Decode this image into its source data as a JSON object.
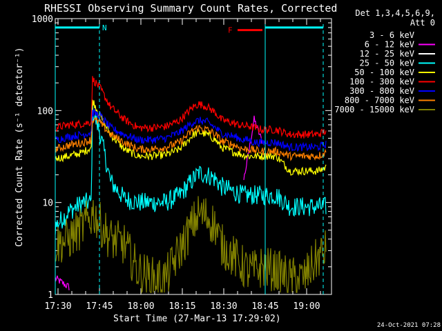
{
  "chart_data": {
    "type": "line",
    "title": "RHESSI Observing Summary Count Rates, Corrected",
    "xlabel": "Start Time (27-Mar-13 17:29:02)",
    "ylabel": "Corrected Count Rate (s⁻¹ detector⁻¹)",
    "y_scale": "log",
    "ylim": [
      1,
      1000
    ],
    "xlim_minutes": [
      0,
      100
    ],
    "x_tick_labels": [
      "17:30",
      "17:45",
      "18:00",
      "18:15",
      "18:30",
      "18:45",
      "19:00"
    ],
    "x_tick_minutes": [
      1,
      16,
      31,
      46,
      61,
      76,
      91
    ],
    "y_tick_labels": [
      "1",
      "10",
      "100",
      "1000"
    ],
    "y_tick_values": [
      1,
      10,
      100,
      1000
    ],
    "legend_header": [
      "Det 1,3,4,5,6,9,",
      "Att 0"
    ],
    "legend_position": "right",
    "timestamp": "24-Oct-2021 07:28",
    "x_sample_minutes": [
      0,
      5,
      10,
      13,
      13.5,
      16,
      20,
      25,
      30,
      35,
      40,
      45,
      50,
      52,
      55,
      58,
      60,
      65,
      68,
      70,
      72,
      75,
      80,
      85,
      90,
      95,
      98
    ],
    "series": [
      {
        "name": "3 - 6 keV",
        "color": "#000000",
        "values": [
          null,
          null,
          null,
          null,
          null,
          null,
          null,
          null,
          null,
          null,
          null,
          null,
          null,
          null,
          null,
          null,
          null,
          null,
          null,
          null,
          null,
          null,
          null,
          null,
          null,
          null,
          null
        ]
      },
      {
        "name": "6 - 12 keV",
        "color": "#ff00ff",
        "values": [
          1.5,
          1.2,
          null,
          null,
          null,
          null,
          null,
          null,
          null,
          null,
          null,
          null,
          null,
          null,
          null,
          null,
          null,
          null,
          16,
          35,
          80,
          45,
          null,
          null,
          null,
          null,
          null
        ]
      },
      {
        "name": "12 - 25 keV",
        "color": "#ffffff",
        "values": [
          null,
          null,
          null,
          null,
          null,
          null,
          null,
          null,
          null,
          null,
          null,
          null,
          null,
          null,
          null,
          null,
          null,
          null,
          null,
          null,
          null,
          null,
          null,
          null,
          null,
          null,
          null
        ]
      },
      {
        "name": "25 - 50 keV",
        "color": "#00ffff",
        "values": [
          5.5,
          8,
          10,
          10,
          100,
          60,
          17,
          11,
          10,
          10,
          10,
          12,
          18,
          21,
          20,
          18,
          15,
          13,
          12,
          12,
          12,
          12,
          12,
          9,
          9,
          9,
          9
        ]
      },
      {
        "name": "50 - 100 keV",
        "color": "#ffff00",
        "values": [
          30,
          32,
          35,
          40,
          130,
          90,
          55,
          38,
          32,
          32,
          33,
          38,
          55,
          58,
          55,
          48,
          40,
          35,
          33,
          32,
          32,
          32,
          32,
          22,
          22,
          22,
          24
        ]
      },
      {
        "name": "100 - 300 keV",
        "color": "#ff0000",
        "values": [
          65,
          70,
          72,
          75,
          220,
          180,
          110,
          80,
          65,
          65,
          67,
          78,
          110,
          118,
          110,
          95,
          80,
          72,
          68,
          68,
          65,
          62,
          62,
          55,
          55,
          55,
          60
        ]
      },
      {
        "name": "300 - 800 keV",
        "color": "#0000ff",
        "values": [
          48,
          52,
          55,
          58,
          95,
          90,
          65,
          55,
          48,
          48,
          50,
          58,
          75,
          78,
          75,
          65,
          57,
          52,
          48,
          48,
          45,
          45,
          45,
          40,
          40,
          40,
          43
        ]
      },
      {
        "name": "800 - 7000 keV",
        "color": "#ff8000",
        "values": [
          38,
          42,
          45,
          48,
          80,
          75,
          55,
          45,
          38,
          38,
          40,
          45,
          62,
          65,
          62,
          55,
          47,
          42,
          38,
          38,
          37,
          36,
          36,
          32,
          32,
          32,
          35
        ]
      },
      {
        "name": "7000 - 15000 keV",
        "color": "#808000",
        "values": [
          3.5,
          4,
          5.5,
          7,
          8,
          6,
          4,
          3.5,
          1.8,
          1.5,
          1.5,
          3,
          6,
          7.5,
          7,
          5.5,
          3.5,
          2.5,
          2,
          1.8,
          1.8,
          2,
          1.8,
          1.5,
          1.5,
          2.5,
          3
        ]
      }
    ],
    "annotations": [
      {
        "label": "N",
        "color": "#00ffff",
        "start_minute": 0,
        "end_minute": 16,
        "level": 800
      },
      {
        "label": "",
        "color": "#00ffff",
        "start_minute": 76,
        "end_minute": 97,
        "level": 800
      },
      {
        "label": "F",
        "color": "#ff0000",
        "start_minute": 66,
        "end_minute": 75,
        "level": 750
      }
    ],
    "vertical_markers": [
      {
        "minute": 0,
        "color": "#00ffff",
        "style": "solid"
      },
      {
        "minute": 16,
        "color": "#00ffff",
        "style": "dashed"
      },
      {
        "minute": 76,
        "color": "#00ffff",
        "style": "solid"
      },
      {
        "minute": 97,
        "color": "#00ffff",
        "style": "dashed"
      }
    ]
  }
}
